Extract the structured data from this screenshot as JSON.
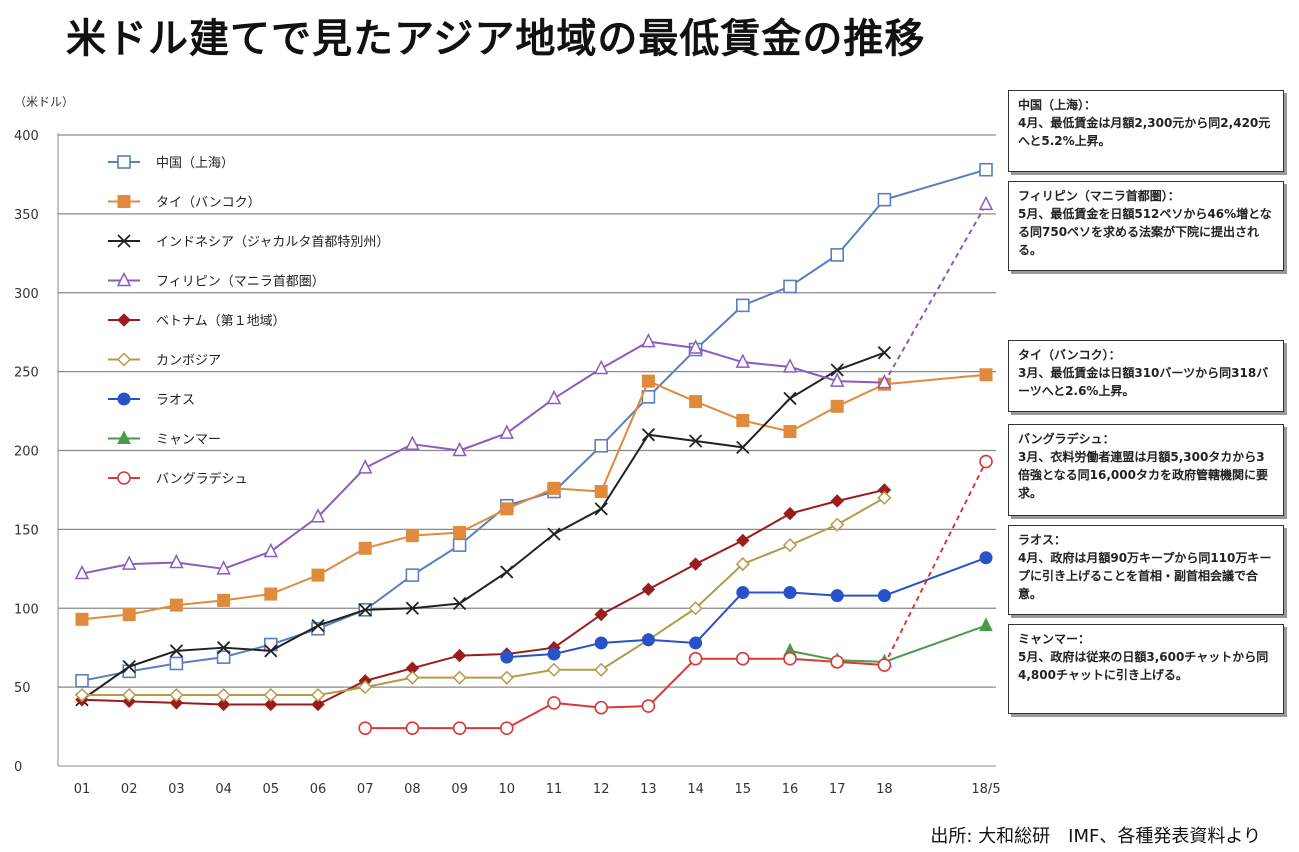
{
  "title": "米ドル建てで見たアジア地域の最低賃金の推移",
  "unit": "（米ドル）",
  "source": "出所: 大和総研　IMF、各種発表資料より",
  "chart_data": {
    "type": "line",
    "x": [
      "01",
      "02",
      "03",
      "04",
      "05",
      "06",
      "07",
      "08",
      "09",
      "10",
      "11",
      "12",
      "13",
      "14",
      "15",
      "16",
      "17",
      "18",
      "18/5"
    ],
    "ylim": [
      0,
      400
    ],
    "yticks": [
      0,
      50,
      100,
      150,
      200,
      250,
      300,
      350,
      400
    ],
    "grid": true,
    "legend_position": "top-left",
    "series": [
      {
        "name": "中国（上海）",
        "color": "#5a7fc0",
        "marker": "square-open",
        "values": [
          54,
          60,
          65,
          69,
          77,
          87,
          99,
          121,
          140,
          165,
          174,
          203,
          234,
          264,
          292,
          304,
          324,
          359,
          378
        ]
      },
      {
        "name": "タイ（バンコク）",
        "color": "#e08a3c",
        "marker": "square-filled",
        "values": [
          93,
          96,
          102,
          105,
          109,
          121,
          138,
          146,
          148,
          163,
          176,
          174,
          244,
          231,
          219,
          212,
          228,
          242,
          248
        ]
      },
      {
        "name": "インドネシア（ジャカルタ首都特別州）",
        "color": "#222222",
        "marker": "x",
        "values": [
          42,
          63,
          73,
          75,
          73,
          89,
          99,
          100,
          103,
          123,
          147,
          163,
          210,
          206,
          202,
          233,
          251,
          262,
          null
        ]
      },
      {
        "name": "フィリピン（マニラ首都圏）",
        "color": "#8a5cc0",
        "marker": "triangle-open",
        "values": [
          122,
          128,
          129,
          125,
          136,
          158,
          189,
          204,
          200,
          211,
          233,
          252,
          269,
          265,
          256,
          253,
          244,
          243,
          356
        ],
        "dashed_last": true
      },
      {
        "name": "ベトナム（第１地域）",
        "color": "#9b1c1c",
        "marker": "diamond-filled",
        "values": [
          42,
          41,
          40,
          39,
          39,
          39,
          54,
          62,
          70,
          71,
          75,
          96,
          112,
          128,
          143,
          160,
          168,
          175,
          null
        ]
      },
      {
        "name": "カンボジア",
        "color": "#b59a48",
        "marker": "diamond-open",
        "values": [
          45,
          45,
          45,
          45,
          45,
          45,
          50,
          56,
          56,
          56,
          61,
          61,
          80,
          100,
          128,
          140,
          153,
          170,
          null
        ]
      },
      {
        "name": "ラオス",
        "color": "#2a52c8",
        "marker": "circle-filled",
        "values": [
          null,
          null,
          null,
          null,
          null,
          null,
          null,
          null,
          null,
          69,
          71,
          78,
          80,
          78,
          110,
          110,
          108,
          108,
          132
        ]
      },
      {
        "name": "ミャンマー",
        "color": "#4a9a4a",
        "marker": "triangle-filled",
        "values": [
          null,
          null,
          null,
          null,
          null,
          null,
          null,
          null,
          null,
          null,
          null,
          null,
          null,
          null,
          null,
          73,
          67,
          66,
          89
        ]
      },
      {
        "name": "バングラデシュ",
        "color": "#d83a3a",
        "marker": "circle-open",
        "values": [
          null,
          null,
          null,
          null,
          null,
          null,
          24,
          24,
          24,
          24,
          40,
          37,
          38,
          68,
          68,
          68,
          66,
          64,
          193
        ],
        "dashed_last": true
      }
    ]
  },
  "notes": [
    {
      "title": "中国（上海）：",
      "body": "4月、最低賃金は月額2,300元から同2,420元へと5.2%上昇。"
    },
    {
      "title": "フィリピン（マニラ首都圏）：",
      "body": "5月、最低賃金を日額512ペソから46%増となる同750ペソを求める法案が下院に提出される。"
    },
    {
      "title": "タイ（バンコク）：",
      "body": "3月、最低賃金は日額310バーツから同318バーツへと2.6%上昇。"
    },
    {
      "title": "バングラデシュ：",
      "body": "3月、衣料労働者連盟は月額5,300タカから3倍強となる同16,000タカを政府管轄機関に要求。"
    },
    {
      "title": "ラオス：",
      "body": "4月、政府は月額90万キープから同110万キープに引き上げることを首相・副首相会議で合意。"
    },
    {
      "title": "ミャンマー：",
      "body": "5月、政府は従来の日額3,600チャットから同4,800チャットに引き上げる。"
    }
  ]
}
